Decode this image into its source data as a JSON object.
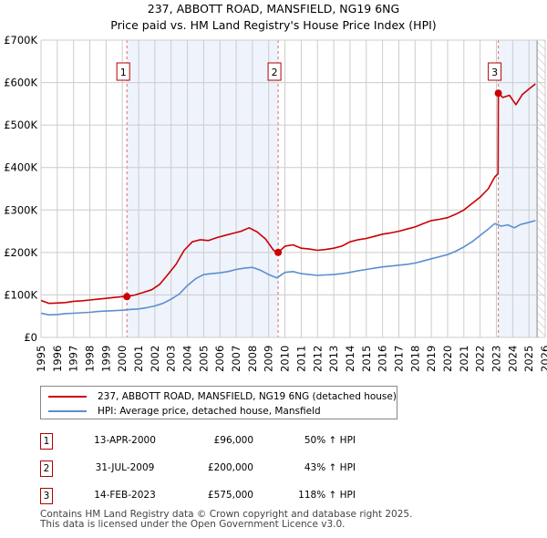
{
  "chart_data": {
    "type": "line",
    "title": "237, ABBOTT ROAD, MANSFIELD, NG19 6NG",
    "subtitle": "Price paid vs. HM Land Registry's House Price Index (HPI)",
    "xlabel": "",
    "ylabel": "",
    "xlim": [
      1995,
      2026
    ],
    "ylim": [
      0,
      700000
    ],
    "grid": true,
    "y_ticks": [
      0,
      100000,
      200000,
      300000,
      400000,
      500000,
      600000,
      700000
    ],
    "y_tick_labels": [
      "£0",
      "£100K",
      "£200K",
      "£300K",
      "£400K",
      "£500K",
      "£600K",
      "£700K"
    ],
    "x_ticks": [
      1995,
      1996,
      1997,
      1998,
      1999,
      2000,
      2001,
      2002,
      2003,
      2004,
      2005,
      2006,
      2007,
      2008,
      2009,
      2010,
      2011,
      2012,
      2013,
      2014,
      2015,
      2016,
      2017,
      2018,
      2019,
      2020,
      2021,
      2022,
      2023,
      2024,
      2025,
      2026
    ],
    "x_tick_labels": [
      "1995",
      "1996",
      "1997",
      "1998",
      "1999",
      "2000",
      "2001",
      "2002",
      "2003",
      "2004",
      "2005",
      "2006",
      "2007",
      "2008",
      "2009",
      "2010",
      "2011",
      "2012",
      "2013",
      "2014",
      "2015",
      "2016",
      "2017",
      "2018",
      "2019",
      "2020",
      "2021",
      "2022",
      "2023",
      "2024",
      "2025",
      "2026"
    ],
    "series": [
      {
        "name": "237, ABBOTT ROAD, MANSFIELD, NG19 6NG (detached house)",
        "color": "#cc0000",
        "x": [
          1995.0,
          1995.5,
          1996.0,
          1996.5,
          1997.0,
          1997.5,
          1998.0,
          1998.5,
          1999.0,
          1999.5,
          2000.0,
          2000.28,
          2000.8,
          2001.3,
          2001.8,
          2002.3,
          2002.8,
          2003.3,
          2003.8,
          2004.3,
          2004.8,
          2005.3,
          2005.8,
          2006.3,
          2006.8,
          2007.3,
          2007.8,
          2008.3,
          2008.8,
          2009.3,
          2009.58,
          2010.0,
          2010.5,
          2011.0,
          2011.5,
          2012.0,
          2012.5,
          2013.0,
          2013.5,
          2014.0,
          2014.5,
          2015.0,
          2015.5,
          2016.0,
          2016.5,
          2017.0,
          2017.5,
          2018.0,
          2018.5,
          2019.0,
          2019.5,
          2020.0,
          2020.5,
          2021.0,
          2021.5,
          2022.0,
          2022.5,
          2022.9,
          2023.1,
          2023.12,
          2023.4,
          2023.8,
          2024.2,
          2024.6,
          2025.0,
          2025.4
        ],
        "values": [
          87000,
          80000,
          81000,
          82000,
          85000,
          86000,
          88000,
          90000,
          92000,
          94000,
          96000,
          96000,
          100000,
          106000,
          112000,
          125000,
          148000,
          172000,
          205000,
          225000,
          230000,
          228000,
          235000,
          240000,
          245000,
          250000,
          258000,
          248000,
          232000,
          205000,
          200000,
          215000,
          218000,
          210000,
          208000,
          205000,
          207000,
          210000,
          215000,
          225000,
          230000,
          233000,
          238000,
          243000,
          246000,
          250000,
          255000,
          260000,
          268000,
          275000,
          278000,
          282000,
          290000,
          300000,
          315000,
          330000,
          350000,
          378000,
          385000,
          575000,
          565000,
          570000,
          548000,
          572000,
          585000,
          597000
        ]
      },
      {
        "name": "HPI: Average price, detached house, Mansfield",
        "color": "#5b8fd0",
        "x": [
          1995.0,
          1995.5,
          1996.0,
          1996.5,
          1997.0,
          1997.5,
          1998.0,
          1998.5,
          1999.0,
          1999.5,
          2000.0,
          2000.5,
          2001.0,
          2001.5,
          2002.0,
          2002.5,
          2003.0,
          2003.5,
          2004.0,
          2004.5,
          2005.0,
          2005.5,
          2006.0,
          2006.5,
          2007.0,
          2007.5,
          2008.0,
          2008.5,
          2009.0,
          2009.5,
          2010.0,
          2010.5,
          2011.0,
          2011.5,
          2012.0,
          2012.5,
          2013.0,
          2013.5,
          2014.0,
          2014.5,
          2015.0,
          2015.5,
          2016.0,
          2016.5,
          2017.0,
          2017.5,
          2018.0,
          2018.5,
          2019.0,
          2019.5,
          2020.0,
          2020.5,
          2021.0,
          2021.5,
          2022.0,
          2022.5,
          2022.9,
          2023.3,
          2023.7,
          2024.1,
          2024.5,
          2024.9,
          2025.4
        ],
        "values": [
          57000,
          53000,
          54000,
          56000,
          57000,
          58000,
          59000,
          61000,
          62000,
          63000,
          64000,
          66000,
          67000,
          70000,
          74000,
          80000,
          90000,
          102000,
          122000,
          138000,
          148000,
          150000,
          152000,
          155000,
          160000,
          163000,
          165000,
          158000,
          148000,
          140000,
          153000,
          155000,
          150000,
          148000,
          146000,
          147000,
          148000,
          150000,
          153000,
          157000,
          160000,
          163000,
          166000,
          168000,
          170000,
          172000,
          175000,
          180000,
          185000,
          190000,
          195000,
          203000,
          213000,
          225000,
          240000,
          255000,
          268000,
          262000,
          265000,
          258000,
          266000,
          270000,
          275000
        ]
      }
    ],
    "sales": [
      {
        "label": "1",
        "x": 2000.28,
        "value": 96000
      },
      {
        "label": "2",
        "x": 2009.58,
        "value": 200000
      },
      {
        "label": "3",
        "x": 2023.12,
        "value": 575000
      }
    ],
    "shaded_ranges": [
      [
        2000.28,
        2009.58
      ],
      [
        2023.12,
        2025.5
      ]
    ],
    "hatched_from": 2025.5,
    "legend_position": "below"
  },
  "title": "237, ABBOTT ROAD, MANSFIELD, NG19 6NG",
  "subtitle": "Price paid vs. HM Land Registry's House Price Index (HPI)",
  "legend": {
    "items": [
      {
        "label": "237, ABBOTT ROAD, MANSFIELD, NG19 6NG (detached house)",
        "color": "#cc0000"
      },
      {
        "label": "HPI: Average price, detached house, Mansfield",
        "color": "#5b8fd0"
      }
    ]
  },
  "transactions": [
    {
      "num": "1",
      "date": "13-APR-2000",
      "price": "£96,000",
      "hpi": "50% ↑ HPI"
    },
    {
      "num": "2",
      "date": "31-JUL-2009",
      "price": "£200,000",
      "hpi": "43% ↑ HPI"
    },
    {
      "num": "3",
      "date": "14-FEB-2023",
      "price": "£575,000",
      "hpi": "118% ↑ HPI"
    }
  ],
  "footer": {
    "line1": "Contains HM Land Registry data © Crown copyright and database right 2025.",
    "line2": "This data is licensed under the Open Government Licence v3.0."
  }
}
